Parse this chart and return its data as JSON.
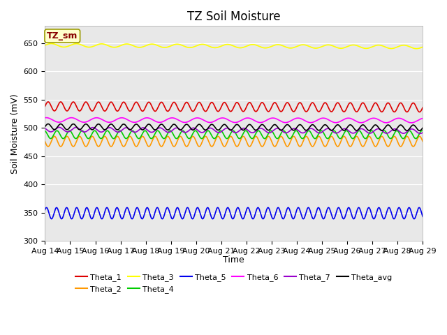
{
  "title": "TZ Soil Moisture",
  "ylabel": "Soil Moisture (mV)",
  "xlabel": "Time",
  "annotation_label": "TZ_sm",
  "annotation_color": "#880000",
  "annotation_bg": "#ffffcc",
  "annotation_border": "#999900",
  "ylim": [
    300,
    680
  ],
  "yticks": [
    300,
    350,
    400,
    450,
    500,
    550,
    600,
    650
  ],
  "start_day": 14,
  "end_day": 29,
  "n_points": 2000,
  "series": [
    {
      "name": "Theta_1",
      "color": "#dd0000",
      "base": 538,
      "amplitude": 8,
      "freq_per_day": 2.0,
      "trend": -2,
      "phase": 0.0
    },
    {
      "name": "Theta_2",
      "color": "#ff9900",
      "base": 476,
      "amplitude": 9,
      "freq_per_day": 2.0,
      "trend": 0,
      "phase": 0.5
    },
    {
      "name": "Theta_3",
      "color": "#ffff00",
      "base": 646,
      "amplitude": 3,
      "freq_per_day": 1.0,
      "trend": -3,
      "phase": 0.0
    },
    {
      "name": "Theta_4",
      "color": "#00cc00",
      "base": 488,
      "amplitude": 7,
      "freq_per_day": 2.0,
      "trend": 0,
      "phase": 0.3
    },
    {
      "name": "Theta_5",
      "color": "#0000ee",
      "base": 349,
      "amplitude": 10,
      "freq_per_day": 2.5,
      "trend": 0,
      "phase": 0.1
    },
    {
      "name": "Theta_6",
      "color": "#ff00ff",
      "base": 514,
      "amplitude": 4,
      "freq_per_day": 1.0,
      "trend": -1,
      "phase": 0.2
    },
    {
      "name": "Theta_7",
      "color": "#9900cc",
      "base": 497,
      "amplitude": 4,
      "freq_per_day": 1.5,
      "trend": -3,
      "phase": 0.4
    },
    {
      "name": "Theta_avg",
      "color": "#000000",
      "base": 502,
      "amplitude": 5,
      "freq_per_day": 2.0,
      "trend": -2,
      "phase": 0.0
    }
  ],
  "fig_bg": "#ffffff",
  "plot_bg": "#e8e8e8",
  "grid_color": "#ffffff",
  "title_fontsize": 12,
  "axis_label_fontsize": 9,
  "tick_fontsize": 8,
  "legend_fontsize": 8,
  "linewidth": 1.2
}
